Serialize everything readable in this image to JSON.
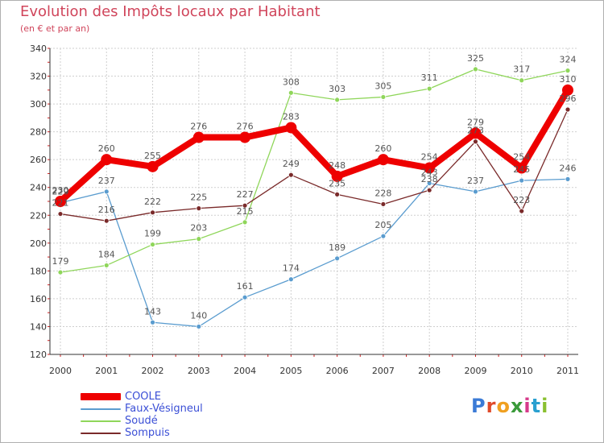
{
  "header": {
    "title": "Evolution des Impôts locaux par Habitant",
    "subtitle": "(en € et par an)"
  },
  "logo": {
    "text": "Proxiti",
    "colors": [
      "#3b7bd6",
      "#e04a2a",
      "#f0a020",
      "#3a9a3a",
      "#d63a8a",
      "#2aa0d0",
      "#8ac030"
    ]
  },
  "chart_data": {
    "type": "line",
    "title": "Evolution des Impôts locaux par Habitant",
    "subtitle": "(en € et par an)",
    "xlabel": "",
    "ylabel": "",
    "ylim": [
      120,
      340
    ],
    "yticks": [
      120,
      140,
      160,
      180,
      200,
      220,
      240,
      260,
      280,
      300,
      320,
      340
    ],
    "categories": [
      "2000",
      "2001",
      "2002",
      "2003",
      "2004",
      "2005",
      "2006",
      "2007",
      "2008",
      "2009",
      "2010",
      "2011"
    ],
    "grid": true,
    "legend_position": "bottom-left",
    "series": [
      {
        "name": "COOLE",
        "color": "#ee0000",
        "labelColor": "#555555",
        "values": [
          230,
          260,
          255,
          276,
          276,
          283,
          248,
          260,
          254,
          279,
          254,
          310
        ]
      },
      {
        "name": "Faux-Vésigneul",
        "color": "#5a9ccf",
        "labelColor": "#555555",
        "values": [
          229,
          237,
          143,
          140,
          161,
          174,
          189,
          205,
          243,
          237,
          245,
          246
        ]
      },
      {
        "name": "Soudé",
        "color": "#8fd65a",
        "labelColor": "#555555",
        "values": [
          179,
          184,
          199,
          203,
          215,
          308,
          303,
          305,
          311,
          325,
          317,
          324
        ]
      },
      {
        "name": "Sompuis",
        "color": "#7a2a2a",
        "labelColor": "#555555",
        "values": [
          221,
          216,
          222,
          225,
          227,
          249,
          235,
          228,
          238,
          273,
          223,
          296
        ]
      }
    ]
  }
}
